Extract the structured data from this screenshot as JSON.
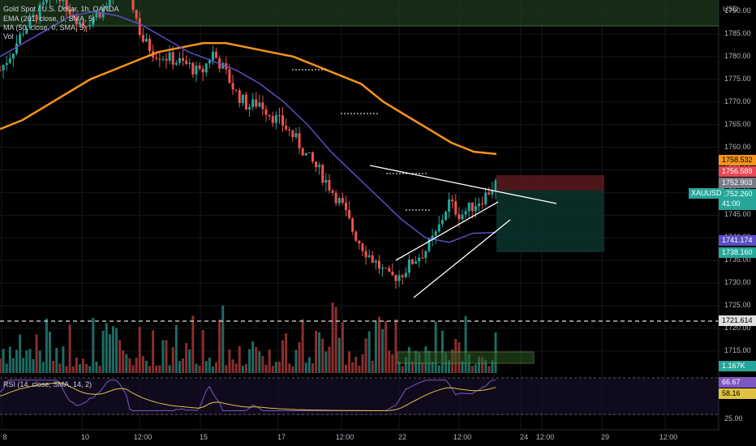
{
  "legend": {
    "symbol_title": "Gold Spot / U.S. Dollar, 1h, OANDA",
    "ema": "EMA (201, close, 0, SMA, 5)",
    "ma": "MA (50, close, 0, SMA, 5)",
    "vol": "Vol",
    "rsi": "RSI (14, close, SMA, 14, 2)"
  },
  "axis": {
    "currency": "USD",
    "price_ticks": [
      "1790.00",
      "1785.00",
      "1780.00",
      "1775.00",
      "1770.00",
      "1765.00",
      "1760.00",
      "1755.00",
      "1750.00",
      "1745.00",
      "1740.00",
      "1735.00",
      "1730.00",
      "1725.00",
      "1720.00",
      "1715.00"
    ],
    "rsi_ticks": [
      "25.00"
    ],
    "time_ticks": [
      "8",
      "10",
      "12:00",
      "15",
      "17",
      "12:00",
      "22",
      "12:00",
      "24",
      "12:00",
      "29",
      "12:00"
    ]
  },
  "price_labels": {
    "ema_value": "1758.532",
    "stop_value": "1756.589",
    "entry_value": "1752.903",
    "last_price": "1752.260",
    "countdown": "41:00",
    "ma_value": "1741.174",
    "target_value": "1738.160",
    "level_value": "1721.614",
    "volume_value": "1.167K",
    "rsi_value": "66.67",
    "rsi_ma_value": "58.16"
  },
  "symbol_tag": "XAUUSD",
  "colors": {
    "up": "#26a69a",
    "down": "#ef5350",
    "ema": "#f7931a",
    "ma": "#5b4fc6",
    "rsi": "#7e57c2",
    "rsi_ma": "#e0c341"
  },
  "chart_data": {
    "type": "candlestick",
    "ohlc_close_path": [
      1777,
      1781,
      1786,
      1789,
      1792,
      1794,
      1790,
      1787,
      1789,
      1791,
      1796,
      1794,
      1784,
      1781,
      1780,
      1779,
      1778,
      1776,
      1781,
      1777,
      1772,
      1769,
      1770,
      1767,
      1765,
      1762,
      1758,
      1755,
      1751,
      1747,
      1741,
      1737,
      1734,
      1731,
      1732,
      1735,
      1737,
      1741,
      1748,
      1745,
      1747,
      1749,
      1752
    ],
    "ema_201": [
      1764,
      1766,
      1769,
      1772,
      1775,
      1777,
      1779,
      1781,
      1782,
      1783,
      1783,
      1782,
      1781,
      1780,
      1778,
      1776,
      1774,
      1770,
      1767,
      1764,
      1761,
      1759,
      1758.5
    ],
    "ma_50": [
      1780,
      1783,
      1786,
      1789,
      1790,
      1789,
      1787,
      1784,
      1781,
      1779,
      1777,
      1774,
      1770,
      1765,
      1759,
      1754,
      1749,
      1744,
      1740,
      1739,
      1741,
      1741.2
    ],
    "ylim": [
      1710,
      1795
    ],
    "rsi_ylim": [
      25,
      75
    ]
  }
}
